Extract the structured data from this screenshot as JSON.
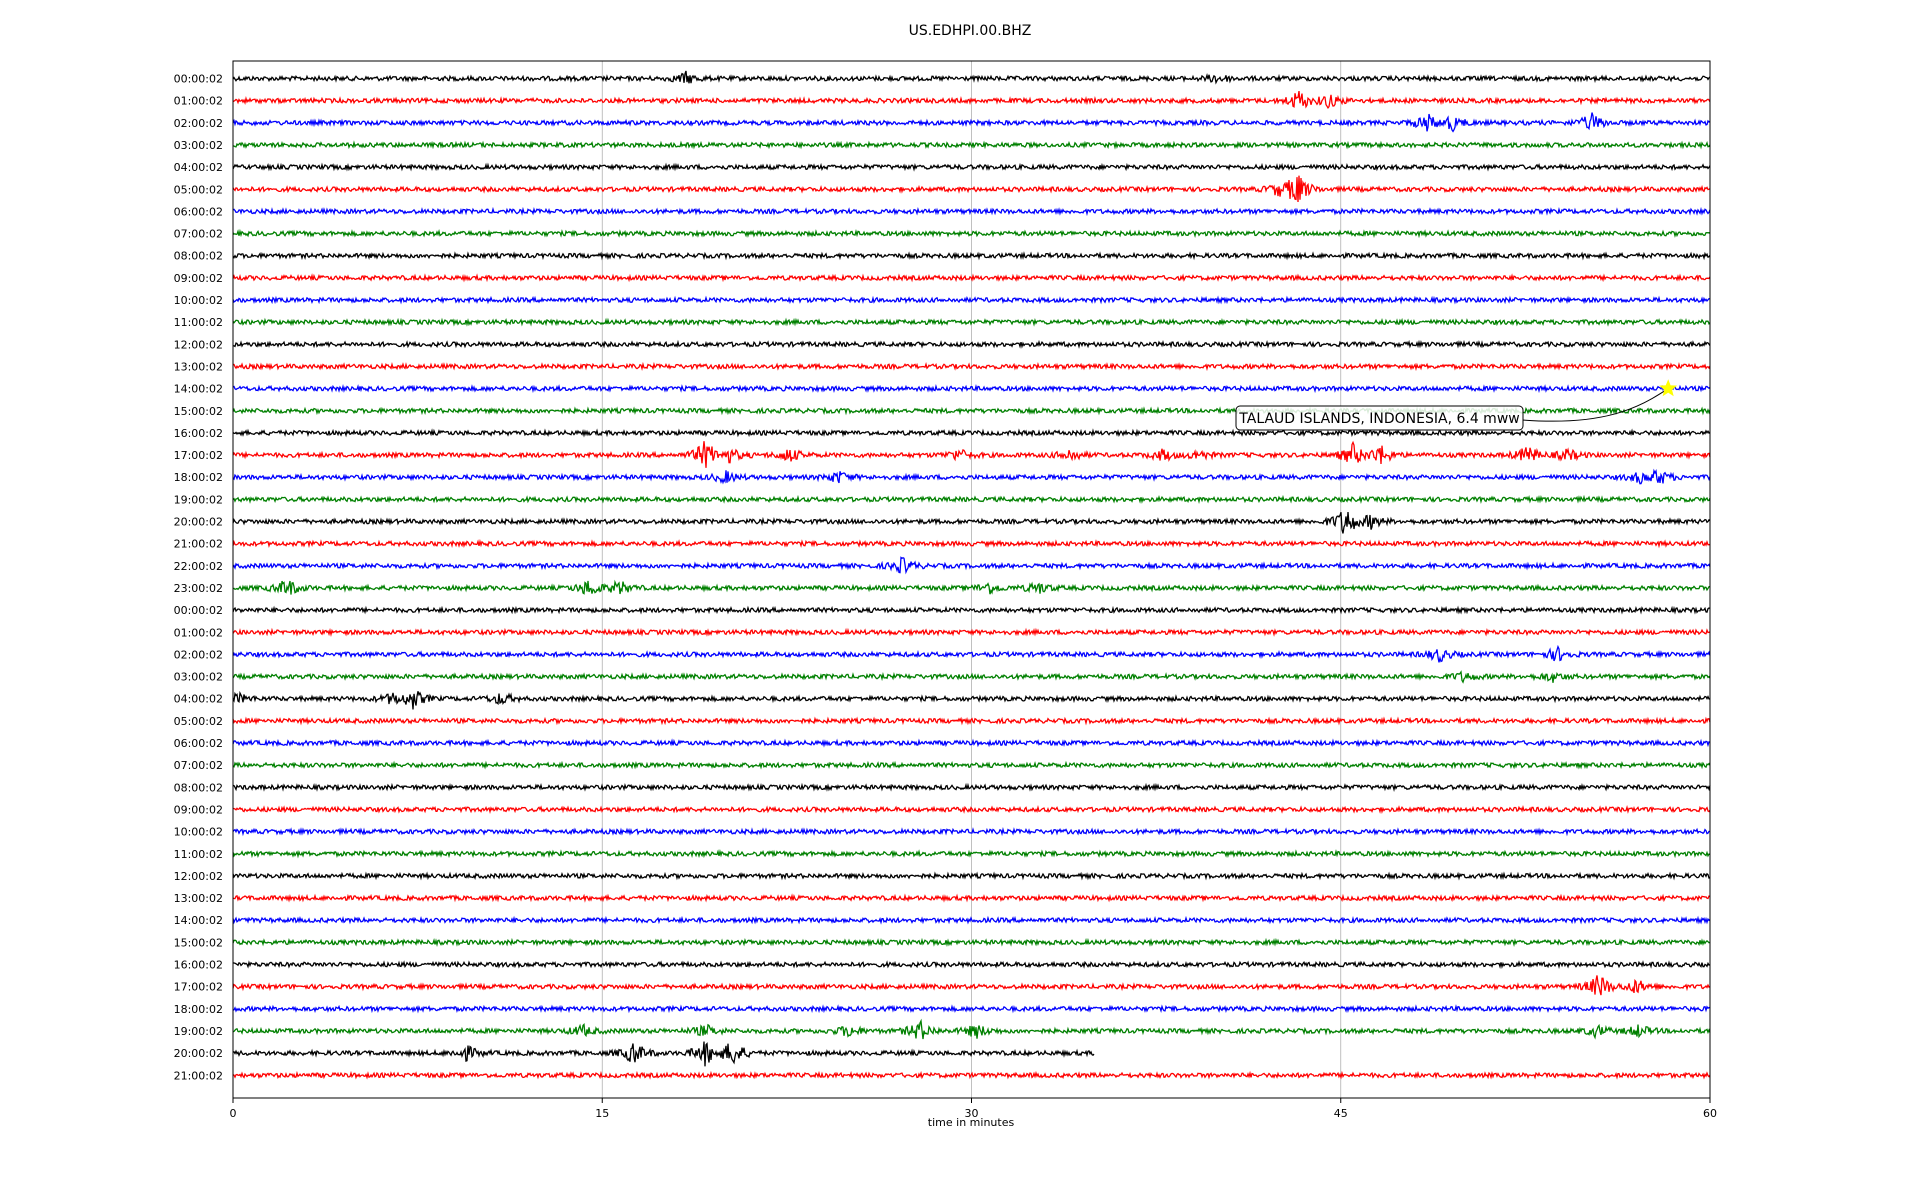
{
  "chart_data": {
    "type": "line",
    "title": "US.EDHPI.00.BHZ",
    "xlabel": "time in minutes",
    "xlim": [
      0,
      60
    ],
    "xticks": [
      0,
      15,
      30,
      45,
      60
    ],
    "xtick_labels": [
      "0",
      "15",
      "30",
      "45",
      "60"
    ],
    "grid": "vertical",
    "line_colors": [
      "#000000",
      "#ff0000",
      "#0000ff",
      "#008000"
    ],
    "hour_labels": [
      "00:00:02",
      "01:00:02",
      "02:00:02",
      "03:00:02",
      "04:00:02",
      "05:00:02",
      "06:00:02",
      "07:00:02",
      "08:00:02",
      "09:00:02",
      "10:00:02",
      "11:00:02",
      "12:00:02",
      "13:00:02",
      "14:00:02",
      "15:00:02",
      "16:00:02",
      "17:00:02",
      "18:00:02",
      "19:00:02",
      "20:00:02",
      "21:00:02",
      "22:00:02",
      "23:00:02",
      "00:00:02",
      "01:00:02",
      "02:00:02",
      "03:00:02",
      "04:00:02",
      "05:00:02",
      "06:00:02",
      "07:00:02",
      "08:00:02",
      "09:00:02",
      "10:00:02",
      "11:00:02",
      "12:00:02",
      "13:00:02",
      "14:00:02",
      "15:00:02",
      "16:00:02",
      "17:00:02",
      "18:00:02",
      "19:00:02",
      "20:00:02",
      "21:00:02"
    ],
    "trace_end_minutes": {
      "44": 35
    },
    "bursts": [
      {
        "trace": 0,
        "minute": 18.4,
        "amplitude": 0.5
      },
      {
        "trace": 0,
        "minute": 40,
        "amplitude": 0.4
      },
      {
        "trace": 1,
        "minute": 43.3,
        "amplitude": 0.9
      },
      {
        "trace": 1,
        "minute": 44.5,
        "amplitude": 0.6
      },
      {
        "trace": 2,
        "minute": 48.5,
        "amplitude": 0.8
      },
      {
        "trace": 2,
        "minute": 49.5,
        "amplitude": 0.7
      },
      {
        "trace": 2,
        "minute": 55.2,
        "amplitude": 0.8
      },
      {
        "trace": 5,
        "minute": 42.5,
        "amplitude": 0.6
      },
      {
        "trace": 5,
        "minute": 43.2,
        "amplitude": 1.6
      },
      {
        "trace": 17,
        "minute": 19.2,
        "amplitude": 1.3
      },
      {
        "trace": 17,
        "minute": 20.2,
        "amplitude": 0.6
      },
      {
        "trace": 17,
        "minute": 22.6,
        "amplitude": 0.6
      },
      {
        "trace": 17,
        "minute": 29.5,
        "amplitude": 0.5
      },
      {
        "trace": 17,
        "minute": 34,
        "amplitude": 0.5
      },
      {
        "trace": 17,
        "minute": 37.8,
        "amplitude": 0.5
      },
      {
        "trace": 17,
        "minute": 39.2,
        "amplitude": 0.4
      },
      {
        "trace": 17,
        "minute": 45.5,
        "amplitude": 1.0
      },
      {
        "trace": 17,
        "minute": 46.6,
        "amplitude": 0.9
      },
      {
        "trace": 17,
        "minute": 52.6,
        "amplitude": 0.8
      },
      {
        "trace": 17,
        "minute": 54.2,
        "amplitude": 0.5
      },
      {
        "trace": 18,
        "minute": 20,
        "amplitude": 0.5
      },
      {
        "trace": 18,
        "minute": 24.6,
        "amplitude": 0.5
      },
      {
        "trace": 18,
        "minute": 57.2,
        "amplitude": 0.5
      },
      {
        "trace": 18,
        "minute": 57.9,
        "amplitude": 0.7
      },
      {
        "trace": 20,
        "minute": 45.2,
        "amplitude": 1.4
      },
      {
        "trace": 20,
        "minute": 46.2,
        "amplitude": 0.6
      },
      {
        "trace": 22,
        "minute": 27.2,
        "amplitude": 0.7
      },
      {
        "trace": 23,
        "minute": 2.2,
        "amplitude": 0.8
      },
      {
        "trace": 23,
        "minute": 14.5,
        "amplitude": 0.8
      },
      {
        "trace": 23,
        "minute": 15.7,
        "amplitude": 0.6
      },
      {
        "trace": 23,
        "minute": 30.7,
        "amplitude": 0.5
      },
      {
        "trace": 23,
        "minute": 32.7,
        "amplitude": 0.5
      },
      {
        "trace": 26,
        "minute": 49,
        "amplitude": 0.6
      },
      {
        "trace": 26,
        "minute": 53.8,
        "amplitude": 0.6
      },
      {
        "trace": 27,
        "minute": 50,
        "amplitude": 0.4
      },
      {
        "trace": 27,
        "minute": 53.6,
        "amplitude": 0.4
      },
      {
        "trace": 28,
        "minute": 0.2,
        "amplitude": 0.4
      },
      {
        "trace": 28,
        "minute": 6.5,
        "amplitude": 0.5
      },
      {
        "trace": 28,
        "minute": 7.3,
        "amplitude": 0.9
      },
      {
        "trace": 28,
        "minute": 10.9,
        "amplitude": 0.5
      },
      {
        "trace": 41,
        "minute": 55.5,
        "amplitude": 1.1
      },
      {
        "trace": 41,
        "minute": 57,
        "amplitude": 0.6
      },
      {
        "trace": 43,
        "minute": 14.2,
        "amplitude": 0.5
      },
      {
        "trace": 43,
        "minute": 19.2,
        "amplitude": 0.5
      },
      {
        "trace": 43,
        "minute": 25,
        "amplitude": 0.5
      },
      {
        "trace": 43,
        "minute": 27.9,
        "amplitude": 0.9
      },
      {
        "trace": 43,
        "minute": 30.2,
        "amplitude": 0.6
      },
      {
        "trace": 43,
        "minute": 55.4,
        "amplitude": 0.5
      },
      {
        "trace": 43,
        "minute": 57.1,
        "amplitude": 0.5
      },
      {
        "trace": 44,
        "minute": 9.5,
        "amplitude": 0.6
      },
      {
        "trace": 44,
        "minute": 16.3,
        "amplitude": 1.0
      },
      {
        "trace": 44,
        "minute": 19.2,
        "amplitude": 1.1
      },
      {
        "trace": 44,
        "minute": 20.3,
        "amplitude": 1.2
      }
    ],
    "annotation": {
      "text": "TALAUD ISLANDS, INDONESIA, 6.4 mww",
      "trace": 14,
      "minute": 58.3,
      "marker": "star",
      "marker_color": "#ffff00"
    }
  }
}
